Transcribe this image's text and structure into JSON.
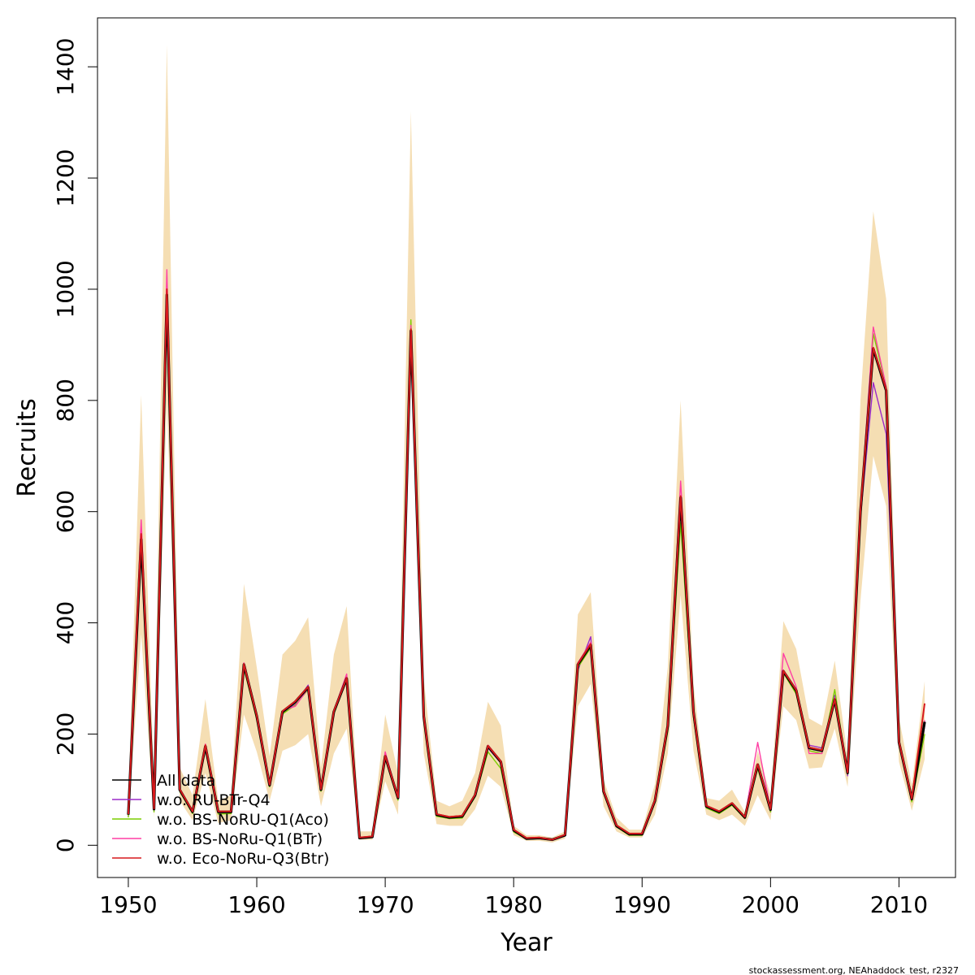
{
  "chart_data": {
    "type": "line",
    "title": "",
    "xlabel": "Year",
    "ylabel": "Recruits",
    "xlim": [
      1947.6,
      2014.4
    ],
    "ylim": [
      -58,
      1488
    ],
    "x_ticks": [
      1950,
      1960,
      1970,
      1980,
      1990,
      2000,
      2010
    ],
    "y_ticks": [
      0,
      200,
      400,
      600,
      800,
      1000,
      1200,
      1400
    ],
    "grid": false,
    "legend_position": "bottom-left",
    "band_color": "#f5deb3",
    "years": [
      1950,
      1951,
      1952,
      1953,
      1954,
      1955,
      1956,
      1957,
      1958,
      1959,
      1960,
      1961,
      1962,
      1963,
      1964,
      1965,
      1966,
      1967,
      1968,
      1969,
      1970,
      1971,
      1972,
      1973,
      1974,
      1975,
      1976,
      1977,
      1978,
      1979,
      1980,
      1981,
      1982,
      1983,
      1984,
      1985,
      1986,
      1987,
      1988,
      1989,
      1990,
      1991,
      1992,
      1993,
      1994,
      1995,
      1996,
      1997,
      1998,
      1999,
      2000,
      2001,
      2002,
      2003,
      2004,
      2005,
      2006,
      2007,
      2008,
      2009,
      2010,
      2011,
      2012
    ],
    "band_upper": [
      80,
      810,
      110,
      1440,
      140,
      90,
      263,
      80,
      90,
      470,
      320,
      160,
      343,
      368,
      410,
      140,
      343,
      430,
      25,
      25,
      235,
      130,
      1320,
      300,
      80,
      70,
      80,
      130,
      258,
      215,
      35,
      18,
      18,
      14,
      25,
      415,
      455,
      118,
      50,
      28,
      28,
      110,
      320,
      800,
      290,
      85,
      80,
      100,
      60,
      170,
      90,
      403,
      353,
      228,
      215,
      332,
      160,
      800,
      1140,
      983,
      230,
      108,
      295
    ],
    "band_lower": [
      45,
      380,
      50,
      800,
      80,
      45,
      130,
      40,
      45,
      235,
      168,
      80,
      170,
      180,
      200,
      70,
      165,
      210,
      10,
      10,
      115,
      55,
      880,
      165,
      38,
      35,
      35,
      65,
      125,
      105,
      18,
      8,
      8,
      5,
      12,
      250,
      290,
      70,
      25,
      14,
      14,
      55,
      165,
      450,
      170,
      55,
      45,
      55,
      35,
      90,
      45,
      250,
      225,
      138,
      140,
      210,
      105,
      440,
      700,
      610,
      150,
      62,
      155
    ],
    "series": [
      {
        "name": "All data",
        "color": "#000000",
        "width": 3.2,
        "values": [
          55,
          550,
          65,
          990,
          100,
          60,
          178,
          60,
          60,
          325,
          232,
          108,
          240,
          258,
          284,
          100,
          240,
          300,
          13,
          15,
          160,
          85,
          925,
          232,
          55,
          50,
          52,
          90,
          178,
          150,
          27,
          12,
          13,
          10,
          18,
          325,
          360,
          97,
          35,
          20,
          20,
          80,
          215,
          625,
          240,
          70,
          60,
          75,
          50,
          145,
          64,
          313,
          278,
          175,
          170,
          262,
          130,
          600,
          893,
          818,
          185,
          83,
          222
        ]
      },
      {
        "name": "w.o. RU-BTr-Q4",
        "color": "#9c2bc9",
        "width": 1.4,
        "values": [
          52,
          545,
          62,
          985,
          98,
          58,
          175,
          57,
          58,
          322,
          228,
          106,
          237,
          255,
          288,
          98,
          238,
          305,
          12,
          14,
          157,
          82,
          920,
          230,
          53,
          48,
          50,
          88,
          175,
          148,
          25,
          11,
          12,
          9,
          17,
          315,
          375,
          95,
          33,
          19,
          19,
          78,
          210,
          615,
          235,
          68,
          58,
          73,
          48,
          140,
          60,
          315,
          275,
          180,
          175,
          270,
          125,
          590,
          832,
          740,
          182,
          80,
          215
        ]
      },
      {
        "name": "w.o. BS-NoRU-Q1(Aco)",
        "color": "#7ccd00",
        "width": 1.4,
        "values": [
          50,
          540,
          60,
          980,
          97,
          57,
          172,
          56,
          57,
          318,
          226,
          105,
          236,
          252,
          280,
          97,
          236,
          298,
          12,
          14,
          156,
          81,
          945,
          228,
          52,
          48,
          49,
          87,
          168,
          138,
          24,
          11,
          12,
          9,
          17,
          320,
          355,
          94,
          33,
          18,
          18,
          77,
          205,
          580,
          230,
          67,
          57,
          72,
          48,
          138,
          60,
          310,
          272,
          170,
          165,
          280,
          128,
          595,
          920,
          825,
          180,
          78,
          200
        ]
      },
      {
        "name": "w.o. BS-NoRu-Q1(BTr)",
        "color": "#ff3fa4",
        "width": 1.4,
        "values": [
          55,
          585,
          65,
          1035,
          102,
          60,
          182,
          60,
          60,
          328,
          234,
          110,
          242,
          250,
          282,
          100,
          242,
          308,
          13,
          15,
          168,
          86,
          935,
          234,
          56,
          50,
          53,
          91,
          180,
          152,
          28,
          12,
          13,
          10,
          18,
          328,
          365,
          98,
          35,
          20,
          20,
          81,
          218,
          655,
          245,
          71,
          60,
          76,
          50,
          185,
          65,
          345,
          285,
          165,
          165,
          265,
          130,
          605,
          932,
          825,
          188,
          84,
          225
        ]
      },
      {
        "name": "w.o. Eco-NoRu-Q3(Btr)",
        "color": "#d7191c",
        "width": 2.0,
        "values": [
          56,
          560,
          66,
          1000,
          101,
          61,
          180,
          61,
          61,
          326,
          233,
          109,
          241,
          259,
          285,
          101,
          241,
          301,
          14,
          16,
          161,
          86,
          928,
          233,
          56,
          51,
          53,
          91,
          179,
          151,
          28,
          13,
          14,
          10,
          19,
          326,
          362,
          98,
          36,
          21,
          21,
          81,
          216,
          628,
          241,
          71,
          61,
          76,
          51,
          146,
          65,
          314,
          279,
          176,
          171,
          263,
          131,
          603,
          895,
          820,
          186,
          84,
          255
        ]
      }
    ],
    "annotations": [
      "stockassessment.org, NEAhaddock_test, r2327"
    ]
  }
}
